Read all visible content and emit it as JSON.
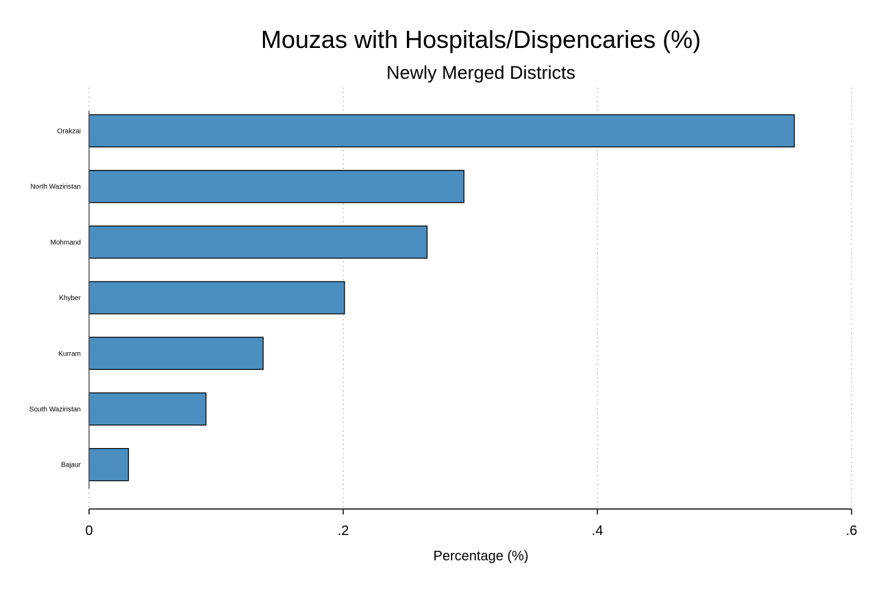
{
  "chart_data": {
    "type": "bar",
    "orientation": "horizontal",
    "title": "Mouzas with Hospitals/Dispencaries (%)",
    "subtitle": "Newly Merged Districts",
    "xlabel": "Percentage (%)",
    "ylabel": "",
    "categories": [
      "Orakzai",
      "North Waziristan",
      "Mohmand",
      "Khyber",
      "Kurram",
      "South Waziristan",
      "Bajaur"
    ],
    "values": [
      0.555,
      0.295,
      0.266,
      0.201,
      0.137,
      0.092,
      0.031
    ],
    "xlim": [
      0,
      0.6
    ],
    "x_ticks": [
      0,
      0.2,
      0.4,
      0.6
    ],
    "x_tick_labels": [
      "0",
      ".2",
      ".4",
      ".6"
    ],
    "grid": "vertical dotted",
    "legend": "none",
    "bar_color": "#4b8fc1",
    "bar_edge_color": "#000000"
  }
}
